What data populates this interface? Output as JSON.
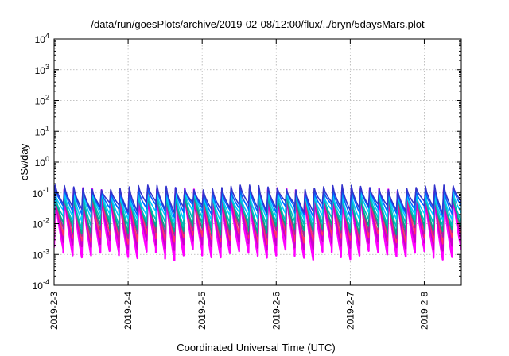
{
  "chart_data": {
    "type": "line",
    "title": "/data/run/goesPlots/archive/2019-02-08/12:00/flux/../bryn/5daysMars.plot",
    "xlabel": "Coordinated Universal Time (UTC)",
    "ylabel": "cSv/day",
    "y_scale": "log",
    "ylim": [
      0.0001,
      10000
    ],
    "y_ticks": [
      {
        "base": "10",
        "exp": "-4",
        "value": 0.0001
      },
      {
        "base": "10",
        "exp": "-3",
        "value": 0.001
      },
      {
        "base": "10",
        "exp": "-2",
        "value": 0.01
      },
      {
        "base": "10",
        "exp": "-1",
        "value": 0.1
      },
      {
        "base": "10",
        "exp": "0",
        "value": 1
      },
      {
        "base": "10",
        "exp": "1",
        "value": 10
      },
      {
        "base": "10",
        "exp": "2",
        "value": 100
      },
      {
        "base": "10",
        "exp": "3",
        "value": 1000
      },
      {
        "base": "10",
        "exp": "4",
        "value": 10000
      }
    ],
    "x_ticks": [
      "2019-2-3",
      "2019-2-4",
      "2019-2-5",
      "2019-2-6",
      "2019-2-7",
      "2019-2-8"
    ],
    "xlim": [
      "2019-02-03T00:00",
      "2019-02-08T12:00"
    ],
    "grid": true,
    "cycle_hours": 3,
    "series": [
      {
        "color": "#ff00ff",
        "peak": 0.12,
        "trough": 0.0012
      },
      {
        "color": "#cc00cc",
        "peak": 0.11,
        "trough": 0.0025
      },
      {
        "color": "#ff3366",
        "peak": 0.13,
        "trough": 0.004
      },
      {
        "color": "#993399",
        "peak": 0.12,
        "trough": 0.006
      },
      {
        "color": "#00aa88",
        "peak": 0.1,
        "trough": 0.008
      },
      {
        "color": "#00bbbb",
        "peak": 0.09,
        "trough": 0.012
      },
      {
        "color": "#00ccff",
        "peak": 0.1,
        "trough": 0.02
      },
      {
        "color": "#0066ff",
        "peak": 0.13,
        "trough": 0.03
      },
      {
        "color": "#3333cc",
        "peak": 0.15,
        "trough": 0.04
      }
    ]
  }
}
